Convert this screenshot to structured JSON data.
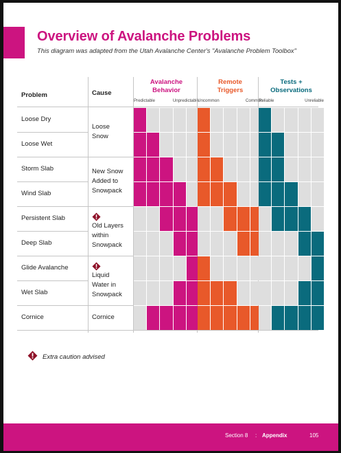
{
  "header": {
    "title": "Overview of Avalanche Problems",
    "subtitle": "This diagram was adapted from the Utah Avalanche Center's \"Avalanche Problem Toolbox\""
  },
  "table": {
    "col_problem": "Problem",
    "col_cause": "Cause",
    "groups": [
      {
        "title": "Avalanche\nBehavior",
        "color": "#cc1480",
        "left": "Predictable",
        "right": "Unpredictable"
      },
      {
        "title": "Remote\nTriggers",
        "color": "#e8592a",
        "left": "Uncommon",
        "right": "Common"
      },
      {
        "title": "Tests +\nObservations",
        "color": "#0a6b7d",
        "left": "Reliable",
        "right": "Unreliable"
      }
    ],
    "rows": [
      {
        "problem": "Loose Dry",
        "behavior": [
          1,
          0,
          0,
          0,
          0
        ],
        "triggers": [
          1,
          0,
          0,
          0,
          0
        ],
        "tests": [
          1,
          0,
          0,
          0,
          0
        ]
      },
      {
        "problem": "Loose Wet",
        "behavior": [
          1,
          1,
          0,
          0,
          0
        ],
        "triggers": [
          1,
          0,
          0,
          0,
          0
        ],
        "tests": [
          1,
          1,
          0,
          0,
          0
        ]
      },
      {
        "problem": "Storm Slab",
        "behavior": [
          1,
          1,
          1,
          0,
          0
        ],
        "triggers": [
          1,
          1,
          0,
          0,
          0
        ],
        "tests": [
          1,
          1,
          0,
          0,
          0
        ]
      },
      {
        "problem": "Wind Slab",
        "behavior": [
          1,
          1,
          1,
          1,
          0
        ],
        "triggers": [
          1,
          1,
          1,
          0,
          0
        ],
        "tests": [
          1,
          1,
          1,
          0,
          0
        ]
      },
      {
        "problem": "Persistent Slab",
        "behavior": [
          0,
          0,
          1,
          1,
          1
        ],
        "triggers": [
          0,
          0,
          1,
          1,
          1
        ],
        "tests": [
          0,
          1,
          1,
          1,
          0
        ]
      },
      {
        "problem": "Deep Slab",
        "behavior": [
          0,
          0,
          0,
          1,
          1
        ],
        "triggers": [
          0,
          0,
          0,
          1,
          1
        ],
        "tests": [
          0,
          0,
          0,
          1,
          1
        ]
      },
      {
        "problem": "Glide Avalanche",
        "behavior": [
          0,
          0,
          0,
          0,
          1
        ],
        "triggers": [
          1,
          0,
          0,
          0,
          0
        ],
        "tests": [
          0,
          0,
          0,
          0,
          1
        ]
      },
      {
        "problem": "Wet Slab",
        "behavior": [
          0,
          0,
          0,
          1,
          1
        ],
        "triggers": [
          1,
          1,
          1,
          0,
          0
        ],
        "tests": [
          0,
          0,
          0,
          1,
          1
        ]
      },
      {
        "problem": "Cornice",
        "behavior": [
          0,
          1,
          1,
          1,
          1
        ],
        "triggers": [
          1,
          1,
          1,
          1,
          1
        ],
        "tests": [
          0,
          1,
          1,
          1,
          1
        ]
      }
    ],
    "causes": [
      {
        "text": "Loose\nSnow",
        "warn": false
      },
      {
        "text": "New Snow\nAdded to\nSnowpack",
        "warn": false
      },
      {
        "text": "Old Layers\nwithin\nSnowpack",
        "warn": true
      },
      {
        "text": "Liquid\nWater in\nSnowpack",
        "warn": true
      },
      {
        "text": "Cornice",
        "warn": false
      }
    ]
  },
  "legend": {
    "text": "Extra caution advised",
    "icon": "warning-diamond-icon"
  },
  "footer": {
    "section": "Section 8",
    "separator": ":",
    "appendix": "Appendix",
    "page": "105"
  },
  "colors": {
    "accent": "#cc1480",
    "orange": "#e8592a",
    "teal": "#0a6b7d",
    "empty": "#dedede"
  }
}
